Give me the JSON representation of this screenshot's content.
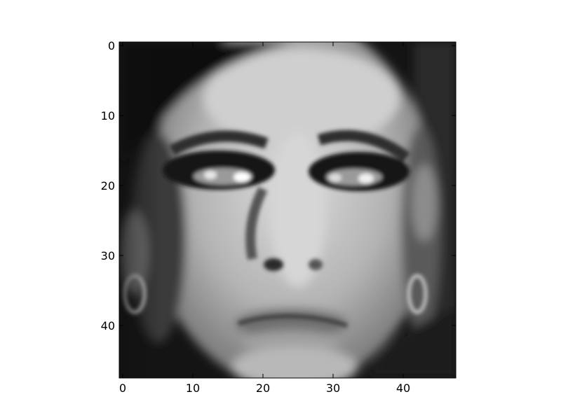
{
  "image": {
    "subject": "grayscale-face",
    "colormap": "gray",
    "grid_size": [
      48,
      48
    ]
  },
  "axes": {
    "x_ticks": [
      "0",
      "10",
      "20",
      "30",
      "40"
    ],
    "y_ticks": [
      "0",
      "10",
      "20",
      "30",
      "40"
    ],
    "x_tick_values": [
      0,
      10,
      20,
      30,
      40
    ],
    "y_tick_values": [
      0,
      10,
      20,
      30,
      40
    ],
    "xlim": [
      -0.5,
      47.5
    ],
    "ylim": [
      47.5,
      -0.5
    ]
  }
}
